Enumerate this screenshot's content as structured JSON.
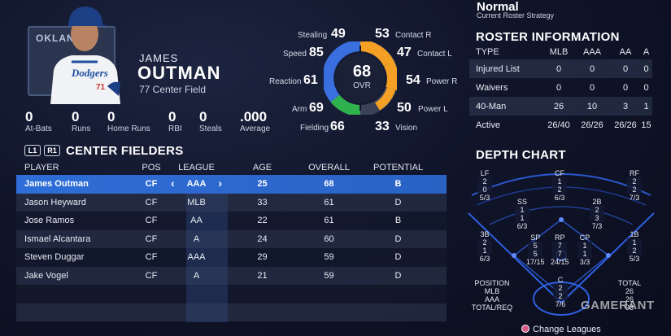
{
  "player": {
    "logo_text": "OKLAN",
    "first_name": "JAMES",
    "last_name": "OUTMAN",
    "number_position": "77  Center Field",
    "stats": [
      {
        "value": "0",
        "label": "At-Bats"
      },
      {
        "value": "0",
        "label": "Runs"
      },
      {
        "value": "0",
        "label": "Home Runs"
      },
      {
        "value": "0",
        "label": "RBI"
      },
      {
        "value": "0",
        "label": "Steals"
      },
      {
        "value": ".000",
        "label": "Average"
      }
    ]
  },
  "ratings": {
    "ovr": "68",
    "ovr_label": "OVR",
    "stealing": {
      "label": "Stealing",
      "value": "49"
    },
    "speed": {
      "label": "Speed",
      "value": "85"
    },
    "reaction": {
      "label": "Reaction",
      "value": "61"
    },
    "arm": {
      "label": "Arm",
      "value": "69"
    },
    "fielding": {
      "label": "Fielding",
      "value": "66"
    },
    "contact_r": {
      "label": "Contact R",
      "value": "53"
    },
    "contact_l": {
      "label": "Contact L",
      "value": "47"
    },
    "power_r": {
      "label": "Power R",
      "value": "54"
    },
    "power_l": {
      "label": "Power L",
      "value": "50"
    },
    "vision": {
      "label": "Vision",
      "value": "33"
    },
    "colors": {
      "blue": "#3a6fe0",
      "orange": "#f4a024",
      "green": "#2fb24e",
      "ring_bg": "#3a4258"
    }
  },
  "strategy": {
    "title": "Normal",
    "subtitle": "Current Roster Strategy"
  },
  "roster": {
    "title": "ROSTER INFORMATION",
    "headers": [
      "TYPE",
      "MLB",
      "AAA",
      "AA",
      "A"
    ],
    "rows": [
      [
        "Injured List",
        "0",
        "0",
        "0",
        "0"
      ],
      [
        "Waivers",
        "0",
        "0",
        "0",
        "0"
      ],
      [
        "40-Man",
        "26",
        "10",
        "3",
        "1"
      ],
      [
        "Active",
        "26/40",
        "26/26",
        "26/26",
        "15"
      ]
    ]
  },
  "center_fielders": {
    "button_l1": "L1",
    "button_r1": "R1",
    "title": "CENTER FIELDERS",
    "headers": [
      "PLAYER",
      "POS",
      "LEAGUE",
      "AGE",
      "OVERALL",
      "POTENTIAL"
    ],
    "rows": [
      [
        "James Outman",
        "CF",
        "AAA",
        "25",
        "68",
        "B"
      ],
      [
        "Jason Heyward",
        "CF",
        "MLB",
        "33",
        "61",
        "D"
      ],
      [
        "Jose Ramos",
        "CF",
        "AA",
        "22",
        "61",
        "B"
      ],
      [
        "Ismael Alcantara",
        "CF",
        "A",
        "24",
        "60",
        "D"
      ],
      [
        "Steven Duggar",
        "CF",
        "AAA",
        "29",
        "59",
        "D"
      ],
      [
        "Jake Vogel",
        "CF",
        "A",
        "21",
        "59",
        "D"
      ]
    ],
    "arrow_left": "‹",
    "arrow_right": "›"
  },
  "depth_chart": {
    "title": "DEPTH CHART",
    "lf": [
      "LF",
      "2",
      "0",
      "5/3"
    ],
    "cf": [
      "CF",
      "1",
      "2",
      "6/3"
    ],
    "rf": [
      "RF",
      "2",
      "2",
      "7/3"
    ],
    "ss": [
      "SS",
      "1",
      "1",
      "6/3"
    ],
    "2b": [
      "2B",
      "2",
      "3",
      "7/3"
    ],
    "3b": [
      "3B",
      "2",
      "1",
      "6/3"
    ],
    "sp": [
      "SP",
      "5",
      "5",
      "17/15"
    ],
    "rp": [
      "RP",
      "7",
      "7",
      "24/15"
    ],
    "cp": [
      "CP",
      "1",
      "1",
      "3/3"
    ],
    "1b": [
      "1B",
      "1",
      "2",
      "5/3"
    ],
    "c": [
      "C",
      "2",
      "2",
      "7/6"
    ],
    "legend_left": [
      "POSITION",
      "MLB",
      "AAA",
      "TOTAL/REQ"
    ],
    "legend_right": [
      "TOTAL",
      "26",
      "26",
      "93"
    ]
  },
  "footer": {
    "change_leagues": "Change Leagues",
    "watermark": "GAMERANT"
  }
}
